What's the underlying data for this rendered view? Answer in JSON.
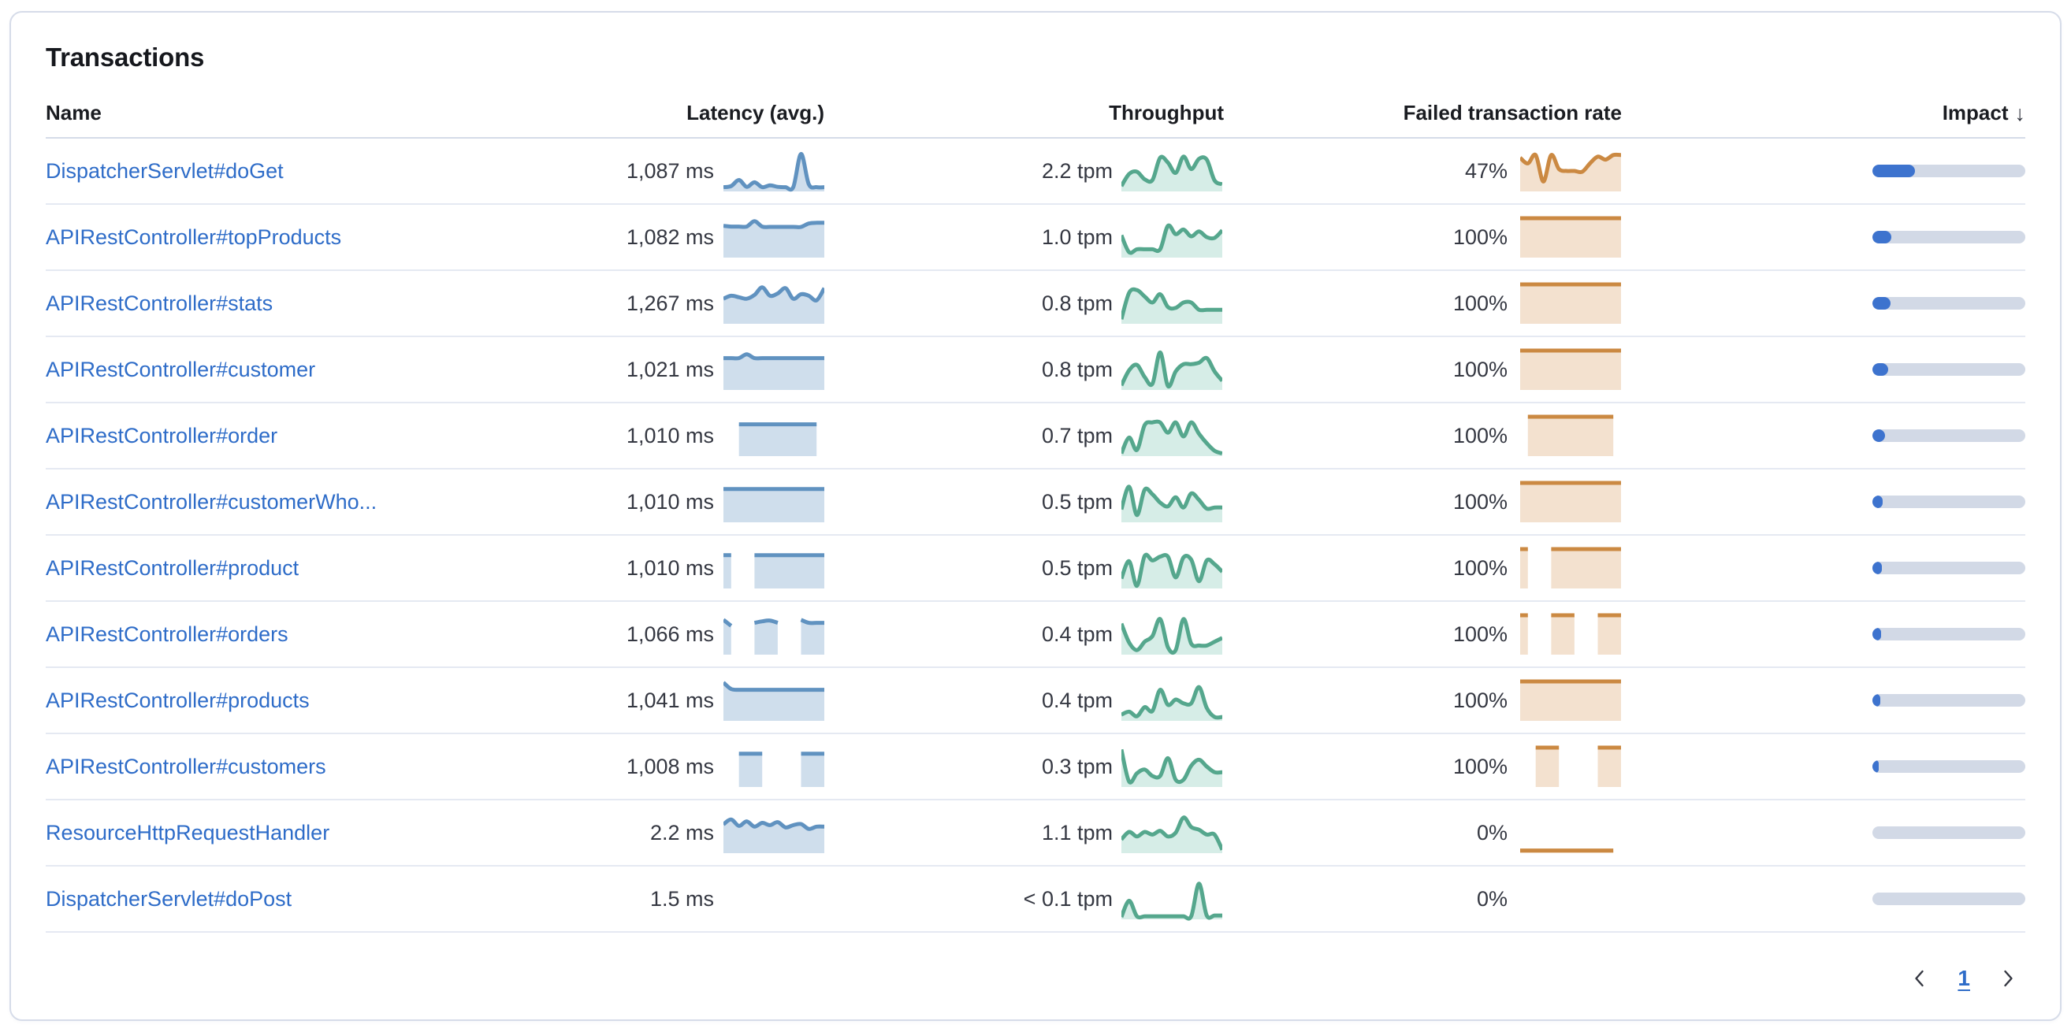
{
  "panel": {
    "title": "Transactions"
  },
  "table": {
    "columns": {
      "name": "Name",
      "latency": "Latency (avg.)",
      "throughput": "Throughput",
      "failed_rate": "Failed transaction rate",
      "impact": "Impact"
    },
    "sort_icon": "↓"
  },
  "pagination": {
    "page": "1"
  },
  "colors": {
    "link": "#2e6cc8",
    "value_text": "#343741",
    "latency_stroke": "#6092c0",
    "latency_fill": "rgba(96,146,192,0.30)",
    "throughput_stroke": "#55a78d",
    "throughput_fill": "rgba(84,179,153,0.24)",
    "failed_stroke": "#cb8942",
    "failed_fill": "rgba(207,141,68,0.26)",
    "impact_fill": "#3d73ce",
    "impact_track": "#d2d9e6"
  },
  "chart_data": {
    "type": "table",
    "title": "Transactions",
    "note": "sparkline values normalized 0-1, null = missing data gap",
    "rows": [
      {
        "name": "DispatcherServlet#doGet",
        "latency": "1,087 ms",
        "throughput": "2.2 tpm",
        "failed_rate": "47%",
        "impact_pct": 28,
        "latency_spark": [
          0.07,
          0.1,
          0.26,
          0.08,
          0.2,
          0.07,
          0.12,
          0.08,
          0.07,
          0.07,
          0.95,
          0.15,
          0.07,
          0.07
        ],
        "throughput_spark": [
          0.1,
          0.42,
          0.48,
          0.28,
          0.26,
          0.85,
          0.72,
          0.45,
          0.88,
          0.55,
          0.82,
          0.8,
          0.25,
          0.15
        ],
        "failed_spark": [
          0.85,
          0.7,
          0.92,
          0.22,
          0.92,
          0.55,
          0.5,
          0.5,
          0.48,
          0.7,
          0.88,
          0.8,
          0.92,
          0.92
        ]
      },
      {
        "name": "APIRestController#topProducts",
        "latency": "1,082 ms",
        "throughput": "1.0 tpm",
        "failed_rate": "100%",
        "impact_pct": 12.5,
        "latency_spark": [
          0.8,
          0.78,
          0.78,
          0.78,
          0.92,
          0.78,
          0.77,
          0.77,
          0.77,
          0.77,
          0.77,
          0.86,
          0.88,
          0.88
        ],
        "throughput_spark": [
          0.55,
          0.1,
          0.18,
          0.18,
          0.18,
          0.18,
          0.8,
          0.58,
          0.7,
          0.52,
          0.65,
          0.5,
          0.48,
          0.68
        ],
        "failed_spark": [
          1,
          1,
          1,
          1,
          1,
          1,
          1,
          1,
          1,
          1,
          1,
          1,
          1,
          1
        ]
      },
      {
        "name": "APIRestController#stats",
        "latency": "1,267 ms",
        "throughput": "0.8 tpm",
        "failed_rate": "100%",
        "impact_pct": 12,
        "latency_spark": [
          0.62,
          0.7,
          0.66,
          0.62,
          0.72,
          0.92,
          0.7,
          0.76,
          0.9,
          0.62,
          0.74,
          0.7,
          0.58,
          0.9
        ],
        "throughput_spark": [
          0.08,
          0.78,
          0.85,
          0.68,
          0.52,
          0.74,
          0.4,
          0.38,
          0.52,
          0.52,
          0.33,
          0.33,
          0.33,
          0.33
        ],
        "failed_spark": [
          1,
          1,
          1,
          1,
          1,
          1,
          1,
          1,
          1,
          1,
          1,
          1,
          1,
          1
        ]
      },
      {
        "name": "APIRestController#customer",
        "latency": "1,021 ms",
        "throughput": "0.8 tpm",
        "failed_rate": "100%",
        "impact_pct": 10.5,
        "latency_spark": [
          0.8,
          0.8,
          0.8,
          0.9,
          0.8,
          0.8,
          0.8,
          0.8,
          0.8,
          0.8,
          0.8,
          0.8,
          0.8,
          0.8
        ],
        "throughput_spark": [
          0.08,
          0.48,
          0.62,
          0.3,
          0.12,
          0.95,
          0.06,
          0.45,
          0.64,
          0.64,
          0.68,
          0.8,
          0.45,
          0.2
        ],
        "failed_spark": [
          1,
          1,
          1,
          1,
          1,
          1,
          1,
          1,
          1,
          1,
          1,
          1,
          1,
          1
        ]
      },
      {
        "name": "APIRestController#order",
        "latency": "1,010 ms",
        "throughput": "0.7 tpm",
        "failed_rate": "100%",
        "impact_pct": 8.5,
        "latency_spark": [
          null,
          null,
          0.8,
          0.8,
          0.8,
          0.8,
          0.8,
          0.8,
          0.8,
          0.8,
          0.8,
          0.8,
          0.8,
          null
        ],
        "throughput_spark": [
          0.03,
          0.45,
          0.12,
          0.78,
          0.85,
          0.85,
          0.58,
          0.85,
          0.48,
          0.85,
          0.55,
          0.3,
          0.1,
          0.03
        ],
        "failed_spark": [
          null,
          1,
          1,
          1,
          1,
          1,
          1,
          1,
          1,
          1,
          1,
          1,
          1,
          null
        ]
      },
      {
        "name": "APIRestController#customerWho...",
        "latency": "1,010 ms",
        "throughput": "0.5 tpm",
        "failed_rate": "100%",
        "impact_pct": 6.5,
        "latency_spark": [
          0.84,
          0.84,
          0.84,
          0.84,
          0.84,
          0.84,
          0.84,
          0.84,
          0.84,
          0.84,
          0.84,
          0.84,
          0.84,
          0.84
        ],
        "throughput_spark": [
          0.3,
          0.9,
          0.15,
          0.82,
          0.7,
          0.48,
          0.38,
          0.62,
          0.35,
          0.72,
          0.55,
          0.32,
          0.35,
          0.35
        ],
        "failed_spark": [
          1,
          1,
          1,
          1,
          1,
          1,
          1,
          1,
          1,
          1,
          1,
          1,
          1,
          1
        ]
      },
      {
        "name": "APIRestController#product",
        "latency": "1,010 ms",
        "throughput": "0.5 tpm",
        "failed_rate": "100%",
        "impact_pct": 6.3,
        "latency_spark": [
          0.84,
          0.84,
          null,
          null,
          0.84,
          0.84,
          0.84,
          0.84,
          0.84,
          0.84,
          0.84,
          0.84,
          0.84,
          0.84
        ],
        "throughput_spark": [
          0.22,
          0.68,
          0.03,
          0.82,
          0.7,
          0.8,
          0.8,
          0.25,
          0.78,
          0.72,
          0.15,
          0.7,
          0.6,
          0.4
        ],
        "failed_spark": [
          1,
          1,
          null,
          null,
          1,
          1,
          1,
          1,
          1,
          1,
          1,
          1,
          1,
          1
        ]
      },
      {
        "name": "APIRestController#orders",
        "latency": "1,066 ms",
        "throughput": "0.4 tpm",
        "failed_rate": "100%",
        "impact_pct": 5.8,
        "latency_spark": [
          0.88,
          0.72,
          null,
          null,
          0.8,
          0.84,
          0.86,
          0.8,
          null,
          null,
          0.88,
          0.8,
          0.8,
          0.8
        ],
        "throughput_spark": [
          0.78,
          0.28,
          0.08,
          0.3,
          0.45,
          0.9,
          0.15,
          0.08,
          0.9,
          0.25,
          0.2,
          0.2,
          0.3,
          0.4
        ],
        "failed_spark": [
          1,
          1,
          null,
          null,
          1,
          1,
          1,
          1,
          null,
          null,
          1,
          1,
          1,
          1
        ]
      },
      {
        "name": "APIRestController#products",
        "latency": "1,041 ms",
        "throughput": "0.4 tpm",
        "failed_rate": "100%",
        "impact_pct": 5.3,
        "latency_spark": [
          0.97,
          0.8,
          0.78,
          0.78,
          0.78,
          0.78,
          0.78,
          0.78,
          0.78,
          0.78,
          0.78,
          0.78,
          0.78,
          0.78
        ],
        "throughput_spark": [
          0.12,
          0.2,
          0.08,
          0.32,
          0.22,
          0.78,
          0.38,
          0.52,
          0.42,
          0.42,
          0.85,
          0.3,
          0.06,
          0.06
        ],
        "failed_spark": [
          1,
          1,
          1,
          1,
          1,
          1,
          1,
          1,
          1,
          1,
          1,
          1,
          1,
          1
        ]
      },
      {
        "name": "APIRestController#customers",
        "latency": "1,008 ms",
        "throughput": "0.3 tpm",
        "failed_rate": "100%",
        "impact_pct": 4,
        "latency_spark": [
          null,
          null,
          0.84,
          0.84,
          0.84,
          0.84,
          null,
          null,
          null,
          null,
          0.84,
          0.84,
          0.84,
          0.84
        ],
        "throughput_spark": [
          0.95,
          0.1,
          0.32,
          0.42,
          0.25,
          0.25,
          0.72,
          0.15,
          0.15,
          0.52,
          0.68,
          0.5,
          0.35,
          0.35
        ],
        "failed_spark": [
          null,
          null,
          1,
          1,
          1,
          1,
          null,
          null,
          null,
          null,
          1,
          1,
          1,
          1
        ]
      },
      {
        "name": "ResourceHttpRequestHandler",
        "latency": "2.2 ms",
        "throughput": "1.1 tpm",
        "failed_rate": "0%",
        "impact_pct": 0,
        "latency_spark": [
          0.72,
          0.85,
          0.68,
          0.8,
          0.66,
          0.76,
          0.7,
          0.78,
          0.64,
          0.7,
          0.73,
          0.6,
          0.66,
          0.66
        ],
        "throughput_spark": [
          0.32,
          0.52,
          0.4,
          0.52,
          0.45,
          0.55,
          0.4,
          0.5,
          0.9,
          0.65,
          0.58,
          0.45,
          0.45,
          0.05
        ],
        "failed_spark": [
          0.03,
          0.03,
          0.03,
          0.03,
          0.03,
          0.03,
          0.03,
          0.03,
          0.03,
          0.03,
          0.03,
          0.03,
          0.03,
          null
        ]
      },
      {
        "name": "DispatcherServlet#doPost",
        "latency": "1.5 ms",
        "throughput": "< 0.1 tpm",
        "failed_rate": "0%",
        "impact_pct": 0,
        "latency_spark": [],
        "throughput_spark": [
          0.02,
          0.45,
          0.04,
          0.04,
          0.04,
          0.04,
          0.04,
          0.04,
          0.04,
          0.04,
          0.9,
          0.06,
          0.06,
          0.06
        ],
        "failed_spark": []
      }
    ]
  }
}
